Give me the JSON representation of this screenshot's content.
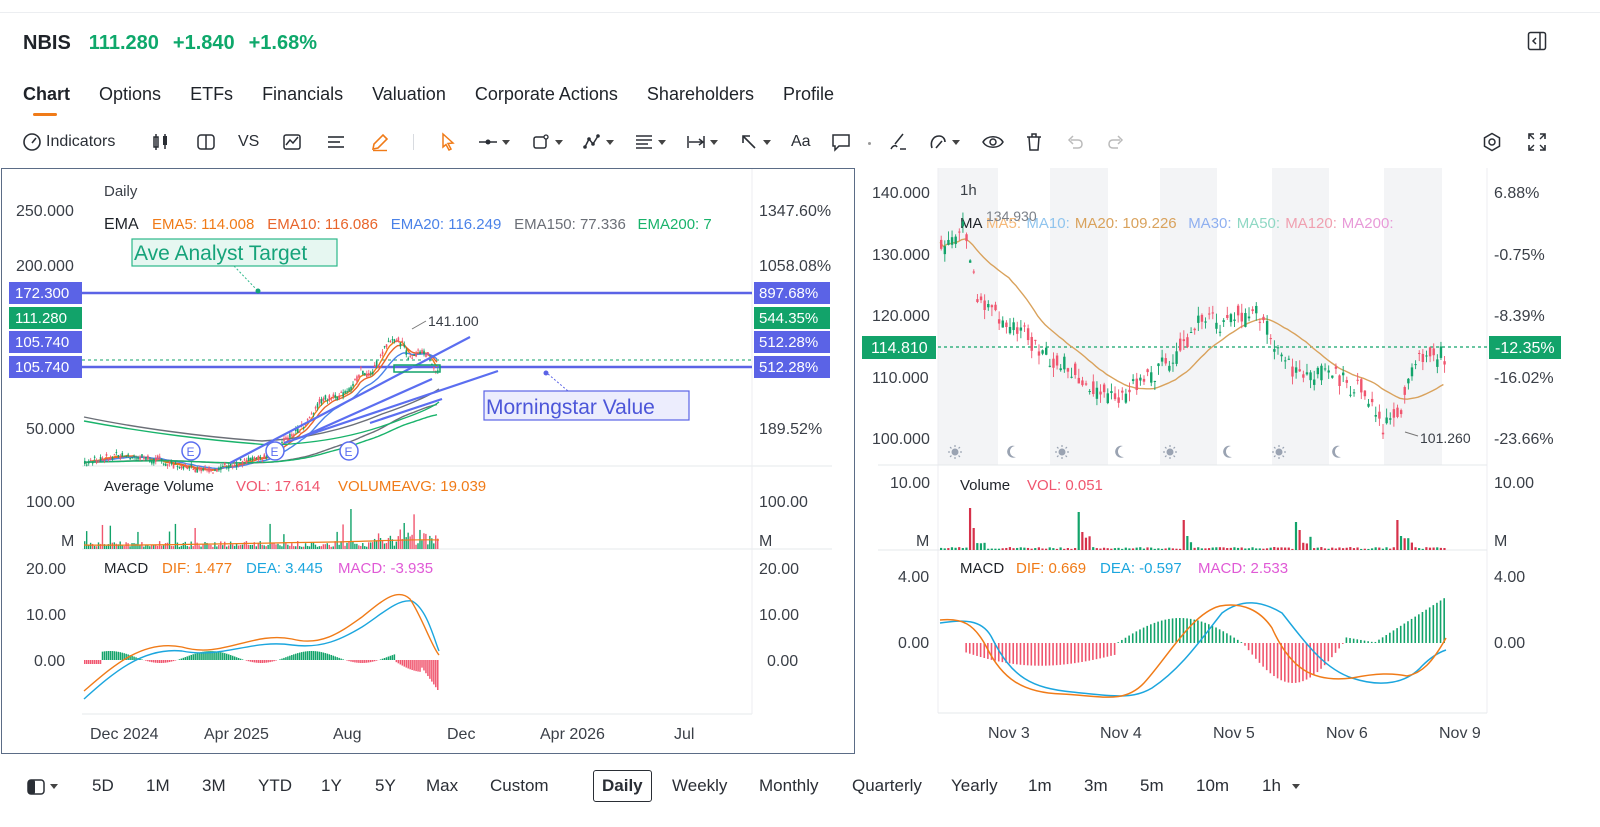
{
  "header": {
    "symbol": "NBIS",
    "price": "111.280",
    "change": "+1.840",
    "change_pct": "+1.68%",
    "up_color": "#0ea86b",
    "collapse_icon": "panel-collapse-icon"
  },
  "tabs": [
    "Chart",
    "Options",
    "ETFs",
    "Financials",
    "Valuation",
    "Corporate Actions",
    "Shareholders",
    "Profile"
  ],
  "active_tab": "Chart",
  "toolbar": {
    "indicators_label": "Indicators",
    "vs_label": "VS",
    "text_label": "Aa",
    "icons": [
      "gauge-icon",
      "candlestick-icon",
      "split-view-icon",
      "compare-icon",
      "chart-type-icon",
      "list-icon",
      "pencil-icon",
      "cursor-icon",
      "line-tool-icon",
      "shape-tool-icon",
      "pattern-tool-icon",
      "fib-tool-icon",
      "measure-tool-icon",
      "arrow-tool-icon",
      "text-tool-icon",
      "comment-tool-icon",
      "brush-tool-icon",
      "magnet-tool-icon",
      "eye-icon",
      "trash-icon",
      "undo-icon",
      "redo-icon",
      "settings-icon",
      "fullscreen-icon"
    ]
  },
  "left_chart": {
    "period_label": "Daily",
    "ema_label": "EMA",
    "ema": [
      {
        "label": "EMA5: 114.008",
        "color": "#f07b18"
      },
      {
        "label": "EMA10: 116.086",
        "color": "#e8642b"
      },
      {
        "label": "EMA20: 116.249",
        "color": "#4a82e8"
      },
      {
        "label": "EMA150: 77.336",
        "color": "#6b6f77"
      },
      {
        "label": "EMA200: 7",
        "color": "#19b36b"
      }
    ],
    "y_ticks": [
      "250.000",
      "200.000",
      "50.000"
    ],
    "y_pct_ticks": [
      "1347.60%",
      "1058.08%",
      "189.52%"
    ],
    "price_tags": [
      {
        "price": "172.300",
        "pct": "897.68%",
        "color": "#5b63e6"
      },
      {
        "price": "111.280",
        "pct": "544.35%",
        "color": "#12a36a"
      },
      {
        "price": "105.740",
        "pct": "512.28%",
        "color": "#5b63e6"
      },
      {
        "price": "105.740",
        "pct": "512.28%",
        "color": "#5b63e6"
      }
    ],
    "high_label": "141.100",
    "earnings_marker": "E",
    "annotation_target": "Ave Analyst Target",
    "annotation_value": "Morningstar Value",
    "x_ticks": [
      "Dec 2024",
      "Apr 2025",
      "Aug",
      "Dec",
      "Apr 2026",
      "Jul"
    ],
    "volume": {
      "title": "Average Volume",
      "vol_label": "VOL: 17.614",
      "avg_label": "VOLUMEAVG: 19.039",
      "tick_top": "100.00",
      "tick_unit": "M"
    },
    "macd": {
      "title": "MACD",
      "dif": "DIF: 1.477",
      "dea": "DEA: 3.445",
      "macd": "MACD: -3.935",
      "ticks": [
        "20.00",
        "10.00",
        "0.00"
      ]
    }
  },
  "right_chart": {
    "period_label": "1h",
    "ma_label": "MA",
    "ma": [
      {
        "label": "MA5:",
        "color": "#f5b979"
      },
      {
        "label": "MA10:",
        "color": "#8fc4ee"
      },
      {
        "label": "MA20: 109.226",
        "color": "#d9a25c"
      },
      {
        "label": "MA30:",
        "color": "#8fb0f0"
      },
      {
        "label": "MA50:",
        "color": "#8fd8c4"
      },
      {
        "label": "MA120:",
        "color": "#f0a0b0"
      },
      {
        "label": "MA200:",
        "color": "#e89ad8"
      }
    ],
    "y_ticks": [
      "140.000",
      "130.000",
      "120.000",
      "110.000",
      "100.000"
    ],
    "y_pct_ticks": [
      "6.88%",
      "-0.75%",
      "-8.39%",
      "-16.02%",
      "-23.66%"
    ],
    "peak_label": "134.930",
    "low_label": "101.260",
    "current_price": "114.810",
    "current_pct": "-12.35%",
    "x_ticks": [
      "Nov 3",
      "Nov 4",
      "Nov 5",
      "Nov 6",
      "Nov 9"
    ],
    "volume": {
      "title": "Volume",
      "vol_label": "VOL: 0.051",
      "tick_top": "10.00",
      "tick_unit": "M"
    },
    "macd": {
      "title": "MACD",
      "dif": "DIF: 0.669",
      "dea": "DEA: -0.597",
      "macd": "MACD: 2.533",
      "ticks": [
        "4.00",
        "0.00"
      ]
    }
  },
  "bottom_bar": {
    "layout_icon": "layout-icon",
    "periods": [
      "5D",
      "1M",
      "3M",
      "YTD",
      "1Y",
      "5Y",
      "Max",
      "Custom",
      "Daily",
      "Weekly",
      "Monthly",
      "Quarterly",
      "Yearly",
      "1m",
      "3m",
      "5m",
      "10m",
      "1h"
    ],
    "active_period": "Daily"
  }
}
